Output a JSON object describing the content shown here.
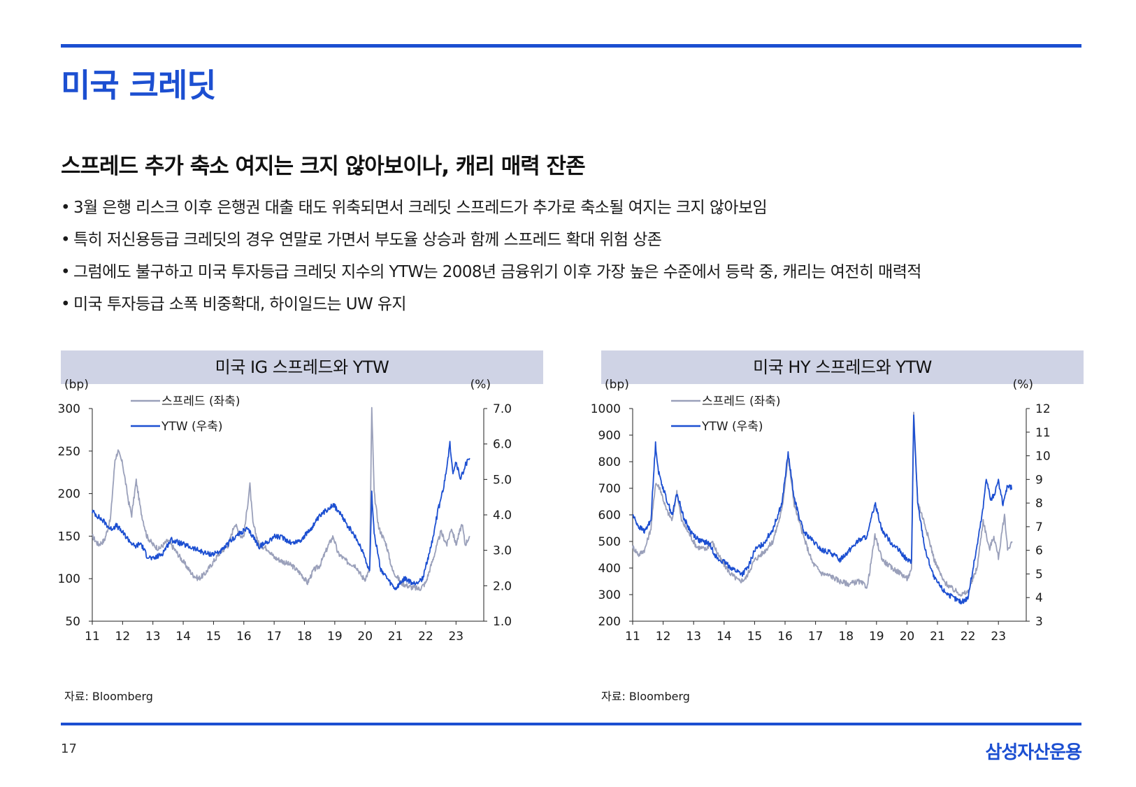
{
  "page": {
    "title": "미국 크레딧",
    "subtitle": "스프레드 추가 축소 여지는 크지 않아보이나, 캐리 매력 잔존",
    "bullets": [
      "3월 은행 리스크 이후 은행권 대출 태도 위축되면서 크레딧 스프레드가 추가로 축소될 여지는 크지 않아보임",
      "특히 저신용등급 크레딧의 경우 연말로 가면서 부도율 상승과 함께 스프레드 확대 위험 상존",
      "그럼에도 불구하고 미국 투자등급 크레딧 지수의 YTW는 2008년 금융위기 이후 가장 높은 수준에서 등락 중, 캐리는 여전히 매력적",
      "미국 투자등급 소폭 비중확대, 하이일드는 UW 유지"
    ],
    "page_number": "17",
    "brand": "삼성자산운용",
    "accent_color": "#1c4fd1"
  },
  "chart_data": [
    {
      "type": "line",
      "title": "미국 IG 스프레드와 YTW",
      "source": "자료: Bloomberg",
      "left_unit": "(bp)",
      "right_unit": "(%)",
      "x_ticks": [
        "11",
        "12",
        "13",
        "14",
        "15",
        "16",
        "17",
        "18",
        "19",
        "20",
        "21",
        "22",
        "23"
      ],
      "x_range": [
        2011,
        2023.5
      ],
      "y_left": {
        "min": 50,
        "max": 300,
        "ticks": [
          "300",
          "250",
          "200",
          "150",
          "100",
          "50"
        ]
      },
      "y_right": {
        "min": 1.0,
        "max": 7.0,
        "ticks": [
          "7.0",
          "6.0",
          "5.0",
          "4.0",
          "3.0",
          "2.0",
          "1.0"
        ]
      },
      "series": [
        {
          "name": "스프레드 (좌축)",
          "axis": "left",
          "color": "#9aa0ba",
          "points": [
            [
              2011.0,
              150
            ],
            [
              2011.2,
              140
            ],
            [
              2011.4,
              145
            ],
            [
              2011.6,
              170
            ],
            [
              2011.75,
              240
            ],
            [
              2011.85,
              250
            ],
            [
              2012.0,
              235
            ],
            [
              2012.2,
              190
            ],
            [
              2012.3,
              175
            ],
            [
              2012.45,
              215
            ],
            [
              2012.6,
              180
            ],
            [
              2012.8,
              150
            ],
            [
              2013.0,
              140
            ],
            [
              2013.2,
              135
            ],
            [
              2013.5,
              145
            ],
            [
              2013.8,
              130
            ],
            [
              2014.0,
              120
            ],
            [
              2014.3,
              105
            ],
            [
              2014.5,
              100
            ],
            [
              2014.7,
              105
            ],
            [
              2014.9,
              115
            ],
            [
              2015.2,
              130
            ],
            [
              2015.5,
              140
            ],
            [
              2015.7,
              165
            ],
            [
              2015.9,
              150
            ],
            [
              2016.0,
              150
            ],
            [
              2016.1,
              180
            ],
            [
              2016.2,
              210
            ],
            [
              2016.3,
              165
            ],
            [
              2016.5,
              140
            ],
            [
              2016.8,
              135
            ],
            [
              2017.0,
              125
            ],
            [
              2017.3,
              120
            ],
            [
              2017.6,
              115
            ],
            [
              2017.9,
              105
            ],
            [
              2018.1,
              95
            ],
            [
              2018.3,
              110
            ],
            [
              2018.5,
              115
            ],
            [
              2018.8,
              140
            ],
            [
              2018.95,
              150
            ],
            [
              2019.1,
              130
            ],
            [
              2019.4,
              120
            ],
            [
              2019.7,
              115
            ],
            [
              2019.9,
              102
            ],
            [
              2020.0,
              100
            ],
            [
              2020.15,
              110
            ],
            [
              2020.22,
              300
            ],
            [
              2020.3,
              200
            ],
            [
              2020.45,
              160
            ],
            [
              2020.7,
              140
            ],
            [
              2020.9,
              110
            ],
            [
              2021.2,
              95
            ],
            [
              2021.5,
              90
            ],
            [
              2021.8,
              88
            ],
            [
              2022.0,
              95
            ],
            [
              2022.3,
              130
            ],
            [
              2022.5,
              155
            ],
            [
              2022.7,
              140
            ],
            [
              2022.85,
              160
            ],
            [
              2023.0,
              140
            ],
            [
              2023.2,
              165
            ],
            [
              2023.3,
              140
            ],
            [
              2023.45,
              150
            ]
          ]
        },
        {
          "name": "YTW (우축)",
          "axis": "right",
          "color": "#1c4fd1",
          "points": [
            [
              2011.0,
              4.1
            ],
            [
              2011.2,
              3.95
            ],
            [
              2011.4,
              3.8
            ],
            [
              2011.6,
              3.6
            ],
            [
              2011.8,
              3.7
            ],
            [
              2012.0,
              3.5
            ],
            [
              2012.2,
              3.3
            ],
            [
              2012.4,
              3.1
            ],
            [
              2012.6,
              3.2
            ],
            [
              2012.8,
              2.85
            ],
            [
              2013.0,
              2.75
            ],
            [
              2013.3,
              2.9
            ],
            [
              2013.6,
              3.3
            ],
            [
              2013.9,
              3.2
            ],
            [
              2014.2,
              3.1
            ],
            [
              2014.5,
              3.0
            ],
            [
              2014.8,
              2.9
            ],
            [
              2015.0,
              2.9
            ],
            [
              2015.3,
              3.0
            ],
            [
              2015.6,
              3.3
            ],
            [
              2015.9,
              3.5
            ],
            [
              2016.1,
              3.6
            ],
            [
              2016.3,
              3.4
            ],
            [
              2016.5,
              3.1
            ],
            [
              2016.8,
              3.25
            ],
            [
              2017.0,
              3.4
            ],
            [
              2017.3,
              3.35
            ],
            [
              2017.6,
              3.2
            ],
            [
              2017.9,
              3.3
            ],
            [
              2018.2,
              3.6
            ],
            [
              2018.5,
              3.95
            ],
            [
              2018.8,
              4.2
            ],
            [
              2018.95,
              4.3
            ],
            [
              2019.2,
              4.0
            ],
            [
              2019.5,
              3.6
            ],
            [
              2019.8,
              3.2
            ],
            [
              2020.0,
              2.8
            ],
            [
              2020.15,
              2.4
            ],
            [
              2020.22,
              4.6
            ],
            [
              2020.3,
              3.5
            ],
            [
              2020.5,
              2.5
            ],
            [
              2020.8,
              2.1
            ],
            [
              2021.0,
              1.9
            ],
            [
              2021.3,
              2.2
            ],
            [
              2021.6,
              2.05
            ],
            [
              2021.9,
              2.2
            ],
            [
              2022.2,
              3.2
            ],
            [
              2022.4,
              4.1
            ],
            [
              2022.6,
              4.8
            ],
            [
              2022.8,
              6.0
            ],
            [
              2022.9,
              5.2
            ],
            [
              2023.0,
              5.5
            ],
            [
              2023.15,
              5.0
            ],
            [
              2023.3,
              5.4
            ],
            [
              2023.45,
              5.6
            ]
          ]
        }
      ]
    },
    {
      "type": "line",
      "title": "미국 HY 스프레드와 YTW",
      "source": "자료: Bloomberg",
      "left_unit": "(bp)",
      "right_unit": "(%)",
      "x_ticks": [
        "11",
        "12",
        "13",
        "14",
        "15",
        "16",
        "17",
        "18",
        "19",
        "20",
        "21",
        "22",
        "23"
      ],
      "x_range": [
        2011,
        2023.5
      ],
      "y_left": {
        "min": 200,
        "max": 1000,
        "ticks": [
          "1000",
          "900",
          "800",
          "700",
          "600",
          "500",
          "400",
          "300",
          "200"
        ]
      },
      "y_right": {
        "min": 3,
        "max": 12,
        "ticks": [
          "12",
          "11",
          "10",
          "9",
          "8",
          "7",
          "6",
          "5",
          "4",
          "3"
        ]
      },
      "series": [
        {
          "name": "스프레드 (좌축)",
          "axis": "left",
          "color": "#9aa0ba",
          "points": [
            [
              2011.0,
              480
            ],
            [
              2011.2,
              450
            ],
            [
              2011.4,
              470
            ],
            [
              2011.6,
              550
            ],
            [
              2011.75,
              720
            ],
            [
              2011.9,
              700
            ],
            [
              2012.1,
              620
            ],
            [
              2012.3,
              580
            ],
            [
              2012.45,
              690
            ],
            [
              2012.6,
              580
            ],
            [
              2012.9,
              520
            ],
            [
              2013.1,
              480
            ],
            [
              2013.4,
              470
            ],
            [
              2013.6,
              500
            ],
            [
              2013.9,
              430
            ],
            [
              2014.2,
              380
            ],
            [
              2014.5,
              350
            ],
            [
              2014.7,
              360
            ],
            [
              2015.0,
              430
            ],
            [
              2015.3,
              460
            ],
            [
              2015.6,
              500
            ],
            [
              2015.9,
              620
            ],
            [
              2016.1,
              820
            ],
            [
              2016.3,
              640
            ],
            [
              2016.6,
              520
            ],
            [
              2016.9,
              420
            ],
            [
              2017.2,
              380
            ],
            [
              2017.5,
              370
            ],
            [
              2017.8,
              350
            ],
            [
              2018.1,
              340
            ],
            [
              2018.4,
              350
            ],
            [
              2018.7,
              330
            ],
            [
              2018.95,
              520
            ],
            [
              2019.2,
              430
            ],
            [
              2019.5,
              400
            ],
            [
              2019.8,
              380
            ],
            [
              2020.0,
              360
            ],
            [
              2020.15,
              390
            ],
            [
              2020.22,
              990
            ],
            [
              2020.35,
              650
            ],
            [
              2020.6,
              560
            ],
            [
              2020.9,
              430
            ],
            [
              2021.2,
              350
            ],
            [
              2021.5,
              320
            ],
            [
              2021.8,
              300
            ],
            [
              2022.0,
              310
            ],
            [
              2022.3,
              400
            ],
            [
              2022.5,
              580
            ],
            [
              2022.7,
              470
            ],
            [
              2022.85,
              520
            ],
            [
              2023.0,
              440
            ],
            [
              2023.2,
              600
            ],
            [
              2023.3,
              470
            ],
            [
              2023.45,
              500
            ]
          ]
        },
        {
          "name": "YTW (우축)",
          "axis": "right",
          "color": "#1c4fd1",
          "points": [
            [
              2011.0,
              7.5
            ],
            [
              2011.2,
              7.0
            ],
            [
              2011.4,
              6.8
            ],
            [
              2011.6,
              7.3
            ],
            [
              2011.75,
              10.5
            ],
            [
              2011.85,
              9.3
            ],
            [
              2012.1,
              8.2
            ],
            [
              2012.3,
              7.5
            ],
            [
              2012.45,
              8.4
            ],
            [
              2012.7,
              7.3
            ],
            [
              2012.9,
              6.8
            ],
            [
              2013.2,
              6.4
            ],
            [
              2013.5,
              6.3
            ],
            [
              2013.8,
              5.6
            ],
            [
              2014.0,
              5.5
            ],
            [
              2014.3,
              5.2
            ],
            [
              2014.6,
              5.0
            ],
            [
              2014.8,
              5.3
            ],
            [
              2015.0,
              6.0
            ],
            [
              2015.3,
              6.3
            ],
            [
              2015.6,
              6.9
            ],
            [
              2015.9,
              8.0
            ],
            [
              2016.1,
              10.1
            ],
            [
              2016.3,
              8.2
            ],
            [
              2016.6,
              6.8
            ],
            [
              2016.9,
              6.4
            ],
            [
              2017.2,
              6.0
            ],
            [
              2017.5,
              5.9
            ],
            [
              2017.8,
              5.6
            ],
            [
              2018.1,
              6.0
            ],
            [
              2018.4,
              6.4
            ],
            [
              2018.7,
              6.6
            ],
            [
              2018.95,
              8.0
            ],
            [
              2019.2,
              6.8
            ],
            [
              2019.5,
              6.3
            ],
            [
              2019.8,
              5.9
            ],
            [
              2020.0,
              5.6
            ],
            [
              2020.15,
              5.5
            ],
            [
              2020.22,
              11.7
            ],
            [
              2020.35,
              8.0
            ],
            [
              2020.6,
              6.0
            ],
            [
              2020.9,
              4.8
            ],
            [
              2021.2,
              4.3
            ],
            [
              2021.5,
              4.0
            ],
            [
              2021.8,
              3.8
            ],
            [
              2022.0,
              4.0
            ],
            [
              2022.3,
              6.2
            ],
            [
              2022.5,
              7.8
            ],
            [
              2022.6,
              9.1
            ],
            [
              2022.75,
              8.1
            ],
            [
              2022.9,
              8.5
            ],
            [
              2023.0,
              8.9
            ],
            [
              2023.15,
              7.9
            ],
            [
              2023.3,
              8.8
            ],
            [
              2023.45,
              8.6
            ]
          ]
        }
      ]
    }
  ]
}
